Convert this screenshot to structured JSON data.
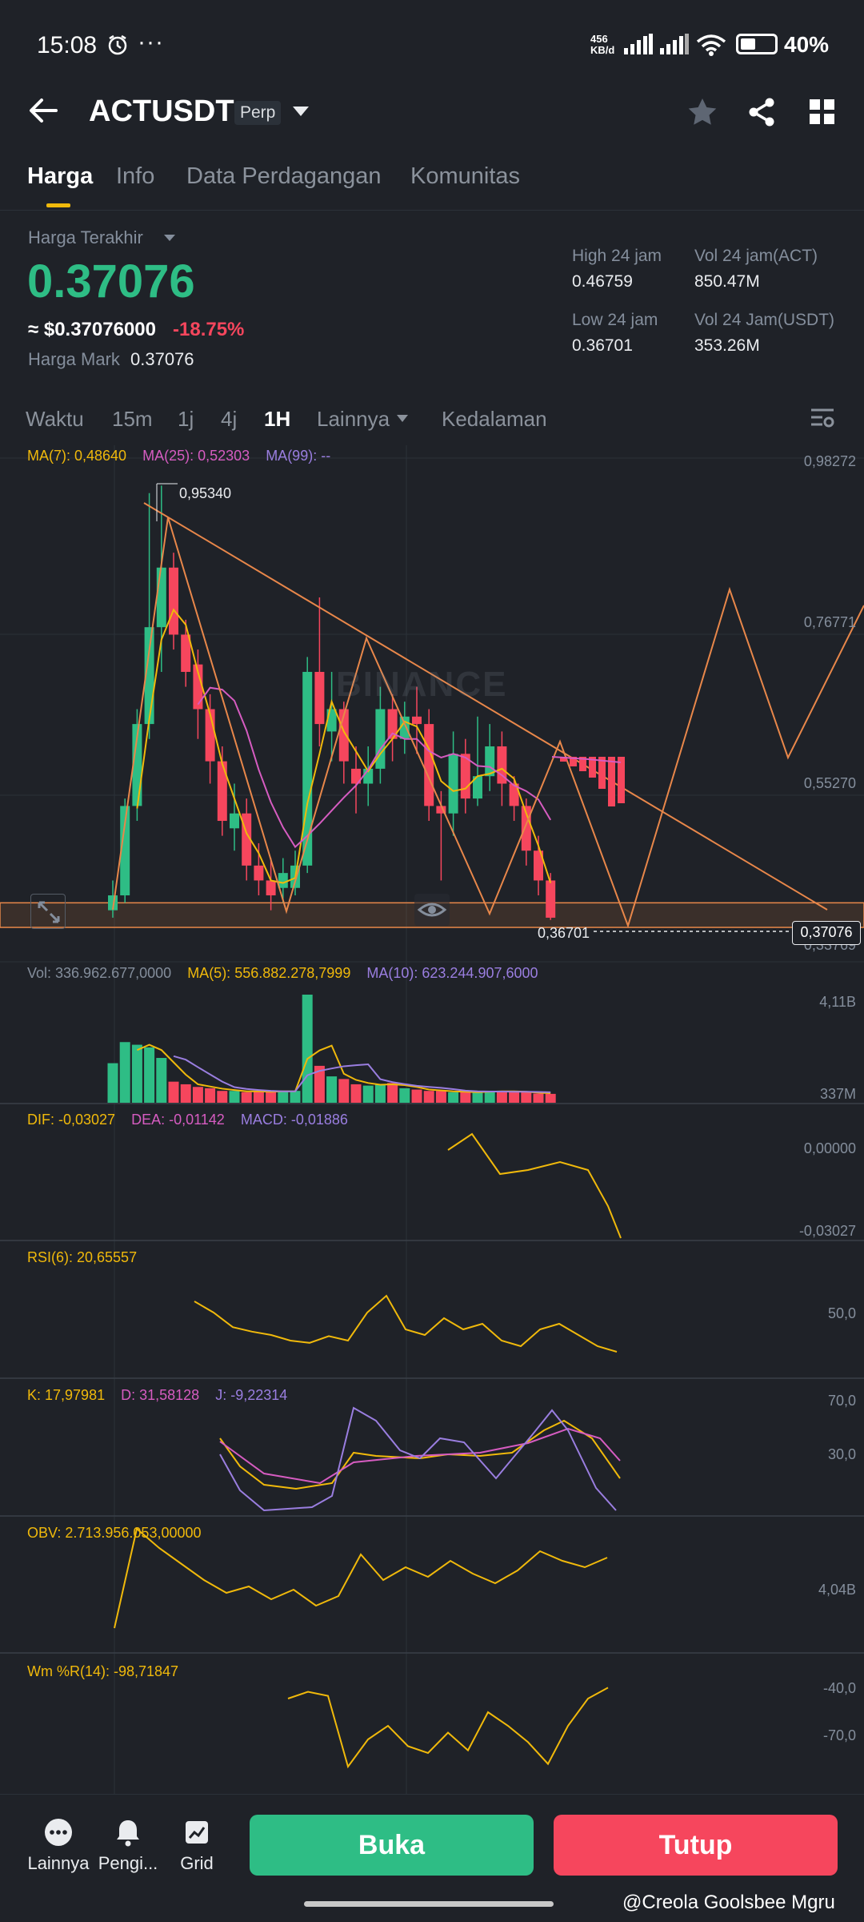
{
  "status_bar": {
    "time": "15:08",
    "net_speed_value": "456",
    "net_speed_unit": "KB/d",
    "battery": "40%",
    "icons": [
      "alarm-icon",
      "more-dots-icon",
      "signal-icon",
      "wifi-icon",
      "battery-icon"
    ]
  },
  "header": {
    "title": "ACTUSDT",
    "badge": "Perp",
    "icons": [
      "back-arrow-icon",
      "chevron-down-icon",
      "star-icon",
      "share-icon",
      "grid-icon"
    ]
  },
  "tabs": [
    {
      "label": "Harga",
      "active": true
    },
    {
      "label": "Info",
      "active": false
    },
    {
      "label": "Data Perdagangan",
      "active": false
    },
    {
      "label": "Komunitas",
      "active": false
    }
  ],
  "price": {
    "label": "Harga Terakhir",
    "last": "0.37076",
    "usd": "≈ $0.37076000",
    "change": "-18.75%",
    "mark_label": "Harga Mark",
    "mark_value": "0.37076"
  },
  "stats": {
    "high_label": "High 24 jam",
    "high_value": "0.46759",
    "low_label": "Low 24 jam",
    "low_value": "0.36701",
    "vol_act_label": "Vol 24 jam(ACT)",
    "vol_act_value": "850.47M",
    "vol_usdt_label": "Vol 24 Jam(USDT)",
    "vol_usdt_value": "353.26M"
  },
  "timeframes": [
    {
      "label": "Waktu",
      "active": false
    },
    {
      "label": "15m",
      "active": false
    },
    {
      "label": "1j",
      "active": false
    },
    {
      "label": "4j",
      "active": false
    },
    {
      "label": "1H",
      "active": true
    },
    {
      "label": "Lainnya",
      "active": false
    },
    {
      "label": "Kedalaman",
      "active": false
    }
  ],
  "indicators": {
    "ma": {
      "ma7": "MA(7): 0,48640",
      "ma25": "MA(25): 0,52303",
      "ma99": "MA(99): --"
    },
    "vol": {
      "vol": "Vol: 336.962.677,0000",
      "ma5": "MA(5): 556.882.278,7999",
      "ma10": "MA(10): 623.244.907,6000"
    },
    "macd": {
      "dif": "DIF: -0,03027",
      "dea": "DEA: -0,01142",
      "macd": "MACD: -0,01886"
    },
    "rsi": {
      "rsi": "RSI(6): 20,65557"
    },
    "kdj": {
      "k": "K: 17,97981",
      "d": "D: 31,58128",
      "j": "J: -9,22314"
    },
    "obv": {
      "obv": "OBV: 2.713.956.053,00000"
    },
    "wr": {
      "wr": "Wm %R(14): -98,71847"
    }
  },
  "axes": {
    "price": [
      "0,98272",
      "0,76771",
      "0,55270",
      "0,33769"
    ],
    "vol": [
      "4,11B",
      "337M"
    ],
    "macd": [
      "0,00000",
      "-0,03027"
    ],
    "rsi": [
      "50,0"
    ],
    "kdj": [
      "70,0",
      "30,0"
    ],
    "obv": [
      "4,04B"
    ],
    "wr": [
      "-40,0",
      "-70,0"
    ]
  },
  "chart_tags": {
    "high": "0,95340",
    "low": "0,36701",
    "current": "0,37076",
    "watermark": "BINANCE"
  },
  "chart_data": {
    "type": "candlestick",
    "candles": [
      [
        0.38,
        0.4,
        0.37,
        0.42
      ],
      [
        0.4,
        0.52,
        0.39,
        0.53
      ],
      [
        0.52,
        0.63,
        0.5,
        0.65
      ],
      [
        0.63,
        0.76,
        0.61,
        0.94
      ],
      [
        0.76,
        0.84,
        0.7,
        0.95
      ],
      [
        0.84,
        0.75,
        0.73,
        0.86
      ],
      [
        0.75,
        0.7,
        0.68,
        0.77
      ],
      [
        0.71,
        0.65,
        0.61,
        0.73
      ],
      [
        0.65,
        0.58,
        0.55,
        0.67
      ],
      [
        0.58,
        0.5,
        0.48,
        0.6
      ],
      [
        0.49,
        0.51,
        0.46,
        0.55
      ],
      [
        0.51,
        0.44,
        0.42,
        0.53
      ],
      [
        0.44,
        0.42,
        0.4,
        0.47
      ],
      [
        0.42,
        0.4,
        0.38,
        0.45
      ],
      [
        0.41,
        0.43,
        0.39,
        0.45
      ],
      [
        0.41,
        0.44,
        0.4,
        0.46
      ],
      [
        0.44,
        0.7,
        0.43,
        0.72
      ],
      [
        0.7,
        0.63,
        0.6,
        0.8
      ],
      [
        0.62,
        0.65,
        0.58,
        0.7
      ],
      [
        0.65,
        0.58,
        0.55,
        0.66
      ],
      [
        0.57,
        0.55,
        0.51,
        0.6
      ],
      [
        0.55,
        0.57,
        0.52,
        0.6
      ],
      [
        0.57,
        0.65,
        0.55,
        0.68
      ],
      [
        0.65,
        0.61,
        0.58,
        0.67
      ],
      [
        0.61,
        0.64,
        0.59,
        0.66
      ],
      [
        0.64,
        0.63,
        0.59,
        0.68
      ],
      [
        0.63,
        0.52,
        0.5,
        0.65
      ],
      [
        0.52,
        0.51,
        0.42,
        0.54
      ],
      [
        0.51,
        0.59,
        0.48,
        0.62
      ],
      [
        0.59,
        0.53,
        0.51,
        0.61
      ],
      [
        0.53,
        0.56,
        0.52,
        0.64
      ],
      [
        0.56,
        0.6,
        0.54,
        0.63
      ],
      [
        0.6,
        0.55,
        0.52,
        0.62
      ],
      [
        0.55,
        0.52,
        0.5,
        0.56
      ],
      [
        0.52,
        0.46,
        0.44,
        0.53
      ],
      [
        0.46,
        0.42,
        0.4,
        0.48
      ],
      [
        0.42,
        0.37,
        0.367,
        0.43
      ]
    ],
    "candle_fields": [
      "open",
      "close",
      "low",
      "high"
    ],
    "volume_m": [
      1500,
      2300,
      2200,
      2100,
      1700,
      800,
      700,
      600,
      550,
      450,
      450,
      400,
      450,
      400,
      450,
      450,
      4100,
      1400,
      1000,
      900,
      700,
      650,
      700,
      750,
      550,
      500,
      450,
      450,
      400,
      400,
      400,
      450,
      450,
      400,
      400,
      350,
      337
    ],
    "rsi": [
      65,
      55,
      42,
      38,
      35,
      30,
      28,
      34,
      30,
      55,
      70,
      40,
      35,
      50,
      40,
      45,
      30,
      25,
      40,
      45,
      35,
      25,
      20
    ],
    "obv_b": [
      0.5,
      3.6,
      3.0,
      2.5,
      2.0,
      1.6,
      1.8,
      1.4,
      1.7,
      1.2,
      1.5,
      2.8,
      2.0,
      2.4,
      2.1,
      2.6,
      2.2,
      1.9,
      2.3,
      2.9,
      2.6,
      2.4,
      2.7
    ],
    "wr": [
      -90,
      -95,
      -92,
      -40,
      -60,
      -70,
      -55,
      -50,
      -65,
      -52,
      -80,
      -70,
      -58,
      -42,
      -70,
      -90,
      -98
    ],
    "ylim": [
      0.33769,
      0.98272
    ],
    "title": "ACTUSDT"
  }
}
